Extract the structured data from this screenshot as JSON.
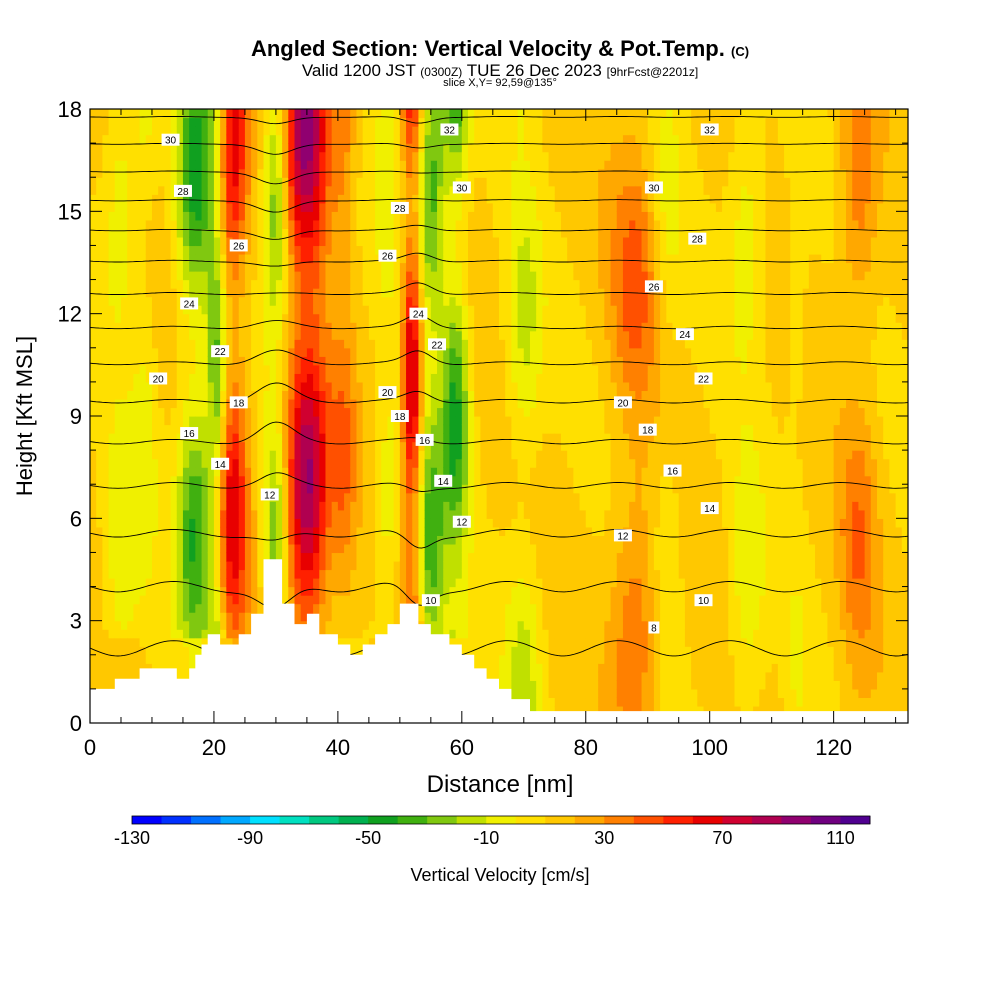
{
  "title": {
    "main": "Angled Section: Vertical Velocity & Pot.Temp.",
    "main_unit": "(C)",
    "valid_prefix": "Valid 1200 JST",
    "valid_utc": "(0300Z)",
    "valid_date": "TUE 26 Dec 2023",
    "forecast": "[9hrFcst@2201z]",
    "slice": "slice X,Y= 92,59@135°"
  },
  "chart_data": {
    "type": "heatmap",
    "xlabel": "Distance [nm]",
    "ylabel": "Height [Kft MSL]",
    "xlim": [
      0,
      132
    ],
    "ylim": [
      0,
      18
    ],
    "xticks": [
      0,
      20,
      40,
      60,
      80,
      100,
      120
    ],
    "yticks": [
      0,
      3,
      6,
      9,
      12,
      15,
      18
    ],
    "colorbar": {
      "label": "Vertical Velocity [cm/s]",
      "range": [
        -130,
        120
      ],
      "step": 10,
      "tick_labels": [
        "-130",
        "-90",
        "-50",
        "-10",
        "30",
        "70",
        "110"
      ],
      "tick_values": [
        -130,
        -90,
        -50,
        -10,
        30,
        70,
        110
      ],
      "colors": [
        "#0000ff",
        "#0030ff",
        "#0070ff",
        "#00a8ff",
        "#00e0ff",
        "#00e0c0",
        "#00c880",
        "#00b050",
        "#10a020",
        "#40b010",
        "#80c810",
        "#c0e000",
        "#f0f000",
        "#ffe000",
        "#ffc800",
        "#ffa800",
        "#ff8000",
        "#ff5000",
        "#ff2000",
        "#e80000",
        "#d00030",
        "#b00050",
        "#900070",
        "#700080",
        "#500090"
      ]
    },
    "velocity_features": [
      {
        "x": 5,
        "w": 3,
        "v": -20
      },
      {
        "x": 9,
        "w": 2,
        "v": -15
      },
      {
        "x": 17,
        "w": 3,
        "v": -55
      },
      {
        "x": 20.5,
        "w": 1.5,
        "v": -45
      },
      {
        "x": 23,
        "w": 2.5,
        "v": 55
      },
      {
        "x": 30,
        "w": 2,
        "v": -45
      },
      {
        "x": 35,
        "w": 3.5,
        "v": 85
      },
      {
        "x": 41,
        "w": 2,
        "v": 25
      },
      {
        "x": 48,
        "w": 2,
        "v": -20
      },
      {
        "x": 52,
        "w": 1.6,
        "v": 70
      },
      {
        "x": 55,
        "w": 2.2,
        "v": -50
      },
      {
        "x": 59,
        "w": 2.2,
        "v": -55
      },
      {
        "x": 70,
        "w": 3,
        "v": -25
      },
      {
        "x": 88,
        "w": 4,
        "v": 30
      },
      {
        "x": 93,
        "w": 2.5,
        "v": -15
      },
      {
        "x": 106,
        "w": 3,
        "v": -20
      },
      {
        "x": 114,
        "w": 2,
        "v": -10
      },
      {
        "x": 124,
        "w": 3,
        "v": 25
      }
    ],
    "theta_levels": [
      2,
      4,
      6,
      8,
      10,
      12,
      14,
      16,
      18,
      20,
      22,
      24,
      26,
      28,
      30,
      32,
      34
    ],
    "theta_labels": [
      {
        "x": 13,
        "y": 17.1,
        "text": "30"
      },
      {
        "x": 15,
        "y": 15.6,
        "text": "28"
      },
      {
        "x": 24,
        "y": 14.0,
        "text": "26"
      },
      {
        "x": 16,
        "y": 12.3,
        "text": "24"
      },
      {
        "x": 21,
        "y": 10.9,
        "text": "22"
      },
      {
        "x": 11,
        "y": 10.1,
        "text": "20"
      },
      {
        "x": 24,
        "y": 9.4,
        "text": "18"
      },
      {
        "x": 16,
        "y": 8.5,
        "text": "16"
      },
      {
        "x": 21,
        "y": 7.6,
        "text": "14"
      },
      {
        "x": 29,
        "y": 6.7,
        "text": "12"
      },
      {
        "x": 58,
        "y": 17.4,
        "text": "32"
      },
      {
        "x": 60,
        "y": 15.7,
        "text": "30"
      },
      {
        "x": 50,
        "y": 15.1,
        "text": "28"
      },
      {
        "x": 48,
        "y": 13.7,
        "text": "26"
      },
      {
        "x": 53,
        "y": 12.0,
        "text": "24"
      },
      {
        "x": 56,
        "y": 11.1,
        "text": "22"
      },
      {
        "x": 48,
        "y": 9.7,
        "text": "20"
      },
      {
        "x": 50,
        "y": 9.0,
        "text": "18"
      },
      {
        "x": 54,
        "y": 8.3,
        "text": "16"
      },
      {
        "x": 57,
        "y": 7.1,
        "text": "14"
      },
      {
        "x": 60,
        "y": 5.9,
        "text": "12"
      },
      {
        "x": 55,
        "y": 3.6,
        "text": "10"
      },
      {
        "x": 100,
        "y": 17.4,
        "text": "32"
      },
      {
        "x": 91,
        "y": 15.7,
        "text": "30"
      },
      {
        "x": 98,
        "y": 14.2,
        "text": "28"
      },
      {
        "x": 91,
        "y": 12.8,
        "text": "26"
      },
      {
        "x": 96,
        "y": 11.4,
        "text": "24"
      },
      {
        "x": 99,
        "y": 10.1,
        "text": "22"
      },
      {
        "x": 86,
        "y": 9.4,
        "text": "20"
      },
      {
        "x": 90,
        "y": 8.6,
        "text": "18"
      },
      {
        "x": 94,
        "y": 7.4,
        "text": "16"
      },
      {
        "x": 100,
        "y": 6.3,
        "text": "14"
      },
      {
        "x": 86,
        "y": 5.5,
        "text": "12"
      },
      {
        "x": 99,
        "y": 3.6,
        "text": "10"
      },
      {
        "x": 91,
        "y": 2.8,
        "text": "8"
      }
    ],
    "terrain": [
      [
        0,
        1.0
      ],
      [
        4,
        1.0
      ],
      [
        4,
        1.3
      ],
      [
        8,
        1.3
      ],
      [
        8,
        1.6
      ],
      [
        14,
        1.6
      ],
      [
        14,
        1.3
      ],
      [
        16,
        1.3
      ],
      [
        16,
        1.6
      ],
      [
        17,
        1.6
      ],
      [
        17,
        2.0
      ],
      [
        18,
        2.0
      ],
      [
        18,
        2.3
      ],
      [
        19,
        2.3
      ],
      [
        19,
        2.6
      ],
      [
        21,
        2.6
      ],
      [
        21,
        2.3
      ],
      [
        24,
        2.3
      ],
      [
        24,
        2.6
      ],
      [
        26,
        2.6
      ],
      [
        26,
        3.2
      ],
      [
        28,
        3.2
      ],
      [
        28,
        4.8
      ],
      [
        31,
        4.8
      ],
      [
        31,
        3.5
      ],
      [
        33,
        3.5
      ],
      [
        33,
        2.9
      ],
      [
        35,
        2.9
      ],
      [
        35,
        3.2
      ],
      [
        37,
        3.2
      ],
      [
        37,
        2.6
      ],
      [
        40,
        2.6
      ],
      [
        40,
        2.3
      ],
      [
        42,
        2.3
      ],
      [
        42,
        2.0
      ],
      [
        44,
        2.0
      ],
      [
        44,
        2.3
      ],
      [
        46,
        2.3
      ],
      [
        46,
        2.6
      ],
      [
        48,
        2.6
      ],
      [
        48,
        2.9
      ],
      [
        50,
        2.9
      ],
      [
        50,
        3.5
      ],
      [
        53,
        3.5
      ],
      [
        53,
        2.9
      ],
      [
        55,
        2.9
      ],
      [
        55,
        2.6
      ],
      [
        58,
        2.6
      ],
      [
        58,
        2.3
      ],
      [
        60,
        2.3
      ],
      [
        60,
        2.0
      ],
      [
        62,
        2.0
      ],
      [
        62,
        1.6
      ],
      [
        64,
        1.6
      ],
      [
        64,
        1.3
      ],
      [
        66,
        1.3
      ],
      [
        66,
        1.0
      ],
      [
        68,
        1.0
      ],
      [
        68,
        0.7
      ],
      [
        71,
        0.7
      ],
      [
        71,
        0.35
      ],
      [
        132,
        0.35
      ]
    ]
  }
}
